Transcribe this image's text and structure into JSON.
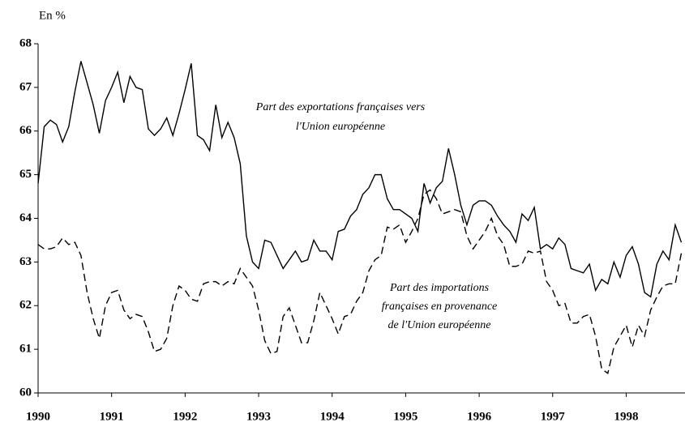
{
  "chart_data": {
    "type": "line",
    "unit_label": "En %",
    "x": [
      1990,
      1990.083,
      1990.167,
      1990.25,
      1990.333,
      1990.417,
      1990.5,
      1990.583,
      1990.667,
      1990.75,
      1990.833,
      1990.917,
      1991,
      1991.083,
      1991.167,
      1991.25,
      1991.333,
      1991.417,
      1991.5,
      1991.583,
      1991.667,
      1991.75,
      1991.833,
      1991.917,
      1992,
      1992.083,
      1992.167,
      1992.25,
      1992.333,
      1992.417,
      1992.5,
      1992.583,
      1992.667,
      1992.75,
      1992.833,
      1992.917,
      1993,
      1993.083,
      1993.167,
      1993.25,
      1993.333,
      1993.417,
      1993.5,
      1993.583,
      1993.667,
      1993.75,
      1993.833,
      1993.917,
      1994,
      1994.083,
      1994.167,
      1994.25,
      1994.333,
      1994.417,
      1994.5,
      1994.583,
      1994.667,
      1994.75,
      1994.833,
      1994.917,
      1995,
      1995.083,
      1995.167,
      1995.25,
      1995.333,
      1995.417,
      1995.5,
      1995.583,
      1995.667,
      1995.75,
      1995.833,
      1995.917,
      1996,
      1996.083,
      1996.167,
      1996.25,
      1996.333,
      1996.417,
      1996.5,
      1996.583,
      1996.667,
      1996.75,
      1996.833,
      1996.917,
      1997,
      1997.083,
      1997.167,
      1997.25,
      1997.333,
      1997.417,
      1997.5,
      1997.583,
      1997.667,
      1997.75,
      1997.833,
      1997.917,
      1998,
      1998.083,
      1998.167,
      1998.25,
      1998.333,
      1998.417,
      1998.5,
      1998.583,
      1998.667,
      1998.75
    ],
    "series": [
      {
        "label_lines": [
          "Part des exportations françaises vers",
          "l'Union européenne"
        ],
        "color": "#000000",
        "dashed": false,
        "values": [
          64.8,
          66.1,
          66.25,
          66.15,
          65.75,
          66.1,
          66.9,
          67.6,
          67.1,
          66.6,
          65.95,
          66.7,
          67.0,
          67.35,
          66.65,
          67.25,
          67.0,
          66.95,
          66.05,
          65.9,
          66.05,
          66.3,
          65.9,
          66.4,
          66.95,
          67.55,
          65.9,
          65.8,
          65.55,
          66.6,
          65.85,
          66.2,
          65.85,
          65.25,
          63.6,
          63.0,
          62.85,
          63.5,
          63.45,
          63.15,
          62.85,
          63.05,
          63.25,
          63.0,
          63.05,
          63.5,
          63.25,
          63.25,
          63.05,
          63.7,
          63.75,
          64.05,
          64.2,
          64.55,
          64.7,
          65.0,
          65.0,
          64.45,
          64.2,
          64.2,
          64.1,
          64.0,
          63.7,
          64.8,
          64.35,
          64.7,
          64.85,
          65.6,
          65.0,
          64.3,
          63.85,
          64.3,
          64.4,
          64.4,
          64.3,
          64.05,
          63.85,
          63.7,
          63.45,
          64.1,
          63.95,
          64.25,
          63.3,
          63.4,
          63.3,
          63.55,
          63.4,
          62.85,
          62.8,
          62.75,
          62.95,
          62.35,
          62.6,
          62.5,
          63.0,
          62.65,
          63.15,
          63.35,
          62.95,
          62.3,
          62.2,
          62.95,
          63.25,
          63.05,
          63.85,
          63.45
        ]
      },
      {
        "label_lines": [
          "Part des importations",
          "françaises en provenance",
          "de l'Union européenne"
        ],
        "color": "#000000",
        "dashed": true,
        "values": [
          63.4,
          63.3,
          63.3,
          63.35,
          63.55,
          63.4,
          63.45,
          63.15,
          62.3,
          61.7,
          61.25,
          62.0,
          62.3,
          62.35,
          61.9,
          61.7,
          61.8,
          61.75,
          61.4,
          60.95,
          61.0,
          61.25,
          62.0,
          62.45,
          62.35,
          62.15,
          62.1,
          62.5,
          62.55,
          62.55,
          62.45,
          62.55,
          62.5,
          62.85,
          62.65,
          62.45,
          61.9,
          61.2,
          60.9,
          60.95,
          61.75,
          61.95,
          61.55,
          61.15,
          61.15,
          61.65,
          62.3,
          62.0,
          61.7,
          61.35,
          61.75,
          61.8,
          62.1,
          62.3,
          62.8,
          63.05,
          63.15,
          63.8,
          63.75,
          63.85,
          63.45,
          63.7,
          64.0,
          64.55,
          64.65,
          64.45,
          64.1,
          64.15,
          64.2,
          64.15,
          63.6,
          63.3,
          63.5,
          63.7,
          64.0,
          63.6,
          63.4,
          62.9,
          62.9,
          62.95,
          63.25,
          63.2,
          63.25,
          62.55,
          62.35,
          62.0,
          62.05,
          61.6,
          61.6,
          61.75,
          61.8,
          61.3,
          60.55,
          60.45,
          61.05,
          61.3,
          61.55,
          61.05,
          61.55,
          61.3,
          61.9,
          62.2,
          62.45,
          62.5,
          62.5,
          63.2
        ]
      }
    ],
    "xlim": [
      1990,
      1998.8
    ],
    "xticks": [
      1990,
      1991,
      1992,
      1993,
      1994,
      1995,
      1996,
      1997,
      1998
    ],
    "ylim": [
      60,
      68
    ],
    "yticks": [
      60,
      61,
      62,
      63,
      64,
      65,
      66,
      67,
      68
    ],
    "grid": false
  }
}
